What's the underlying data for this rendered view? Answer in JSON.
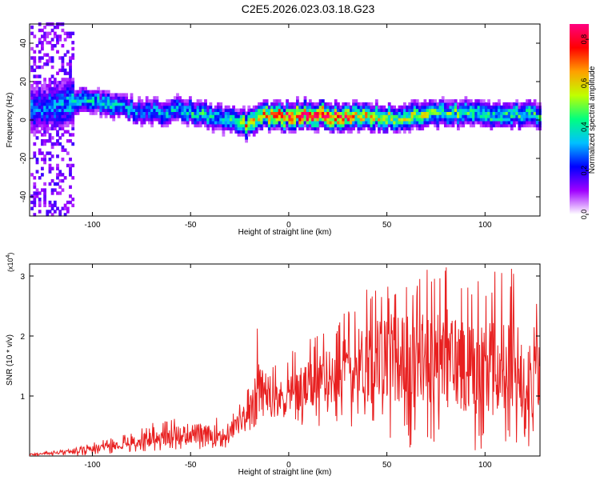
{
  "title": "C2E5.2026.023.03.18.G23",
  "colors": {
    "snr_line": "#e82020",
    "frame": "#000000",
    "spectrum_colormap": [
      "#ffffff",
      "#a000ff",
      "#0000ff",
      "#00c0ff",
      "#00ff80",
      "#c0ff00",
      "#ffa000",
      "#ff0000",
      "#ff0080"
    ]
  },
  "chart_data": [
    {
      "type": "heatmap",
      "xlabel": "Height of straight line (km)",
      "ylabel": "Frequency (Hz)",
      "xlim": [
        -132,
        128
      ],
      "ylim": [
        -50,
        50
      ],
      "x_ticks": [
        -100,
        -50,
        0,
        50,
        100
      ],
      "x_tick_labels": [
        "-100",
        "-50",
        "0",
        "50",
        "100"
      ],
      "y_ticks": [
        -40,
        -20,
        0,
        20,
        40
      ],
      "y_tick_labels": [
        "-40",
        "-20",
        "0",
        "20",
        "40"
      ],
      "grid": false,
      "colorbar": {
        "label": "Normalized spectral amplitude",
        "range": [
          0,
          0.87
        ],
        "ticks": [
          0.0,
          0.2,
          0.4,
          0.6,
          0.8
        ],
        "tick_labels": [
          "0.0",
          "0.2",
          "0.4",
          "0.6",
          "0.8"
        ],
        "position": "right"
      },
      "ridge": {
        "x": [
          -125,
          -115,
          -105,
          -95,
          -85,
          -75,
          -65,
          -55,
          -45,
          -35,
          -25,
          -22,
          -15,
          -5,
          0,
          5,
          15,
          25,
          35,
          45,
          55,
          65,
          75,
          85,
          95,
          105,
          115,
          125
        ],
        "freq": [
          5,
          8,
          9,
          8,
          6,
          4,
          3,
          5,
          2,
          0,
          -2,
          -3,
          2,
          1,
          1,
          2,
          2,
          1,
          2,
          1,
          0,
          2,
          3,
          3,
          3,
          1,
          2,
          2
        ],
        "peak_amplitude": [
          0.3,
          0.35,
          0.4,
          0.4,
          0.35,
          0.35,
          0.35,
          0.4,
          0.45,
          0.4,
          0.5,
          0.75,
          0.65,
          0.85,
          0.8,
          0.85,
          0.85,
          0.85,
          0.7,
          0.6,
          0.55,
          0.6,
          0.5,
          0.5,
          0.45,
          0.45,
          0.45,
          0.45
        ]
      }
    },
    {
      "type": "line",
      "xlabel": "Height of straight line (km)",
      "ylabel": "SNR (10 * v/v)",
      "y_scale_label": "(x10",
      "y_scale_exponent": "4",
      "xlim": [
        -132,
        128
      ],
      "ylim": [
        0,
        3.2
      ],
      "x_ticks": [
        -100,
        -50,
        0,
        50,
        100
      ],
      "x_tick_labels": [
        "-100",
        "-50",
        "0",
        "50",
        "100"
      ],
      "y_ticks": [
        1,
        2,
        3
      ],
      "y_tick_labels": [
        "1",
        "2",
        "3"
      ],
      "grid": false,
      "series": [
        {
          "x": [
            -130,
            -110,
            -100,
            -90,
            -80,
            -70,
            -60,
            -50,
            -40,
            -30,
            -25,
            -20,
            -17,
            -15,
            -12,
            -10,
            -5,
            0,
            5,
            10,
            20,
            30,
            40,
            50,
            60,
            70,
            80,
            90,
            100,
            110,
            120,
            128
          ],
          "mean": [
            0.03,
            0.07,
            0.12,
            0.18,
            0.23,
            0.28,
            0.33,
            0.38,
            0.35,
            0.4,
            0.55,
            0.7,
            0.85,
            1.2,
            1.05,
            0.9,
            0.95,
            1.05,
            1.1,
            1.15,
            1.3,
            1.45,
            1.55,
            1.65,
            1.6,
            1.55,
            1.6,
            1.55,
            1.5,
            1.45,
            1.4,
            1.35
          ],
          "max": [
            0.05,
            0.12,
            0.22,
            0.3,
            0.42,
            0.55,
            0.62,
            0.75,
            0.68,
            0.72,
            0.95,
            1.3,
            2.25,
            2.2,
            1.5,
            1.45,
            1.6,
            1.7,
            1.85,
            2.0,
            2.2,
            2.5,
            2.9,
            3.0,
            2.85,
            3.15,
            3.2,
            3.1,
            3.0,
            3.15,
            3.1,
            2.9
          ],
          "min": [
            0.0,
            0.0,
            0.02,
            0.03,
            0.05,
            0.08,
            0.1,
            0.12,
            0.1,
            0.15,
            0.25,
            0.35,
            0.45,
            0.6,
            0.55,
            0.5,
            0.55,
            0.6,
            0.45,
            0.5,
            0.5,
            0.4,
            0.35,
            0.3,
            0.1,
            0.15,
            0.05,
            0.1,
            0.05,
            0.15,
            0.05,
            0.2
          ]
        }
      ]
    }
  ]
}
